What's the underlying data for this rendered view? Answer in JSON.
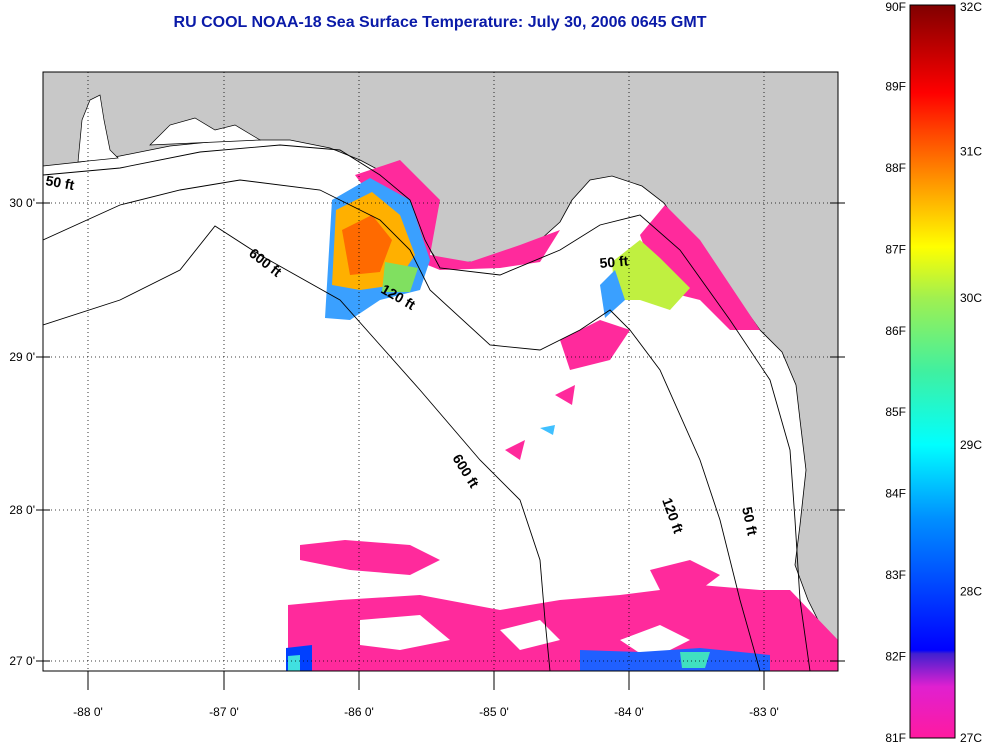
{
  "title": "RU COOL  NOAA-18  Sea Surface Temperature:  July 30, 2006 0645 GMT",
  "map": {
    "lon_labels": [
      "-88 0'",
      "-87 0'",
      "-86 0'",
      "-85 0'",
      "-84 0'",
      "-83 0'"
    ],
    "lon_values": [
      -88,
      -87,
      -86,
      -85,
      -84,
      -83
    ],
    "lat_labels": [
      "30 0'",
      "29 0'",
      "28 0'",
      "27 0'"
    ],
    "lat_values": [
      30,
      29,
      28,
      27
    ],
    "contour_labels": [
      "50 ft",
      "600 ft",
      "120 ft",
      "50 ft",
      "600 ft",
      "120 ft",
      "50 ft"
    ],
    "colors": {
      "land": "#c8c8c8",
      "water": "#ffffff",
      "cool": "#ff2a9c"
    }
  },
  "colorbar": {
    "f_labels": [
      "90F",
      "89F",
      "88F",
      "87F",
      "86F",
      "85F",
      "84F",
      "83F",
      "82F",
      "81F"
    ],
    "c_labels": [
      "32C",
      "31C",
      "30C",
      "29C",
      "28C",
      "27C"
    ],
    "f_range": [
      81,
      90
    ],
    "c_range": [
      27,
      32
    ]
  }
}
